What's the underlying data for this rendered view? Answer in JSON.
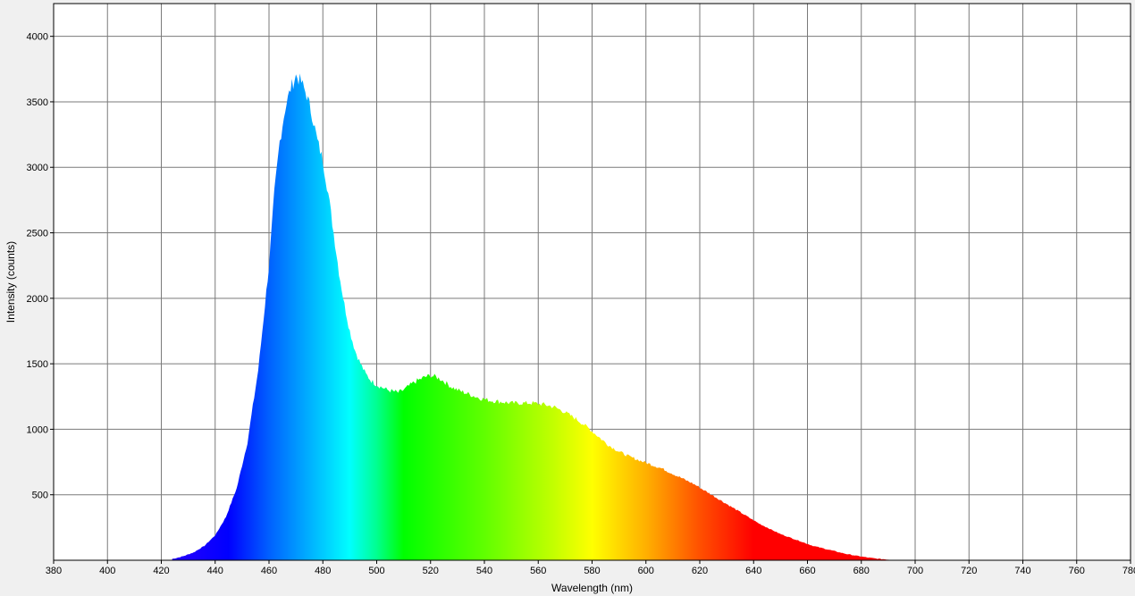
{
  "chart_data": {
    "type": "area",
    "title": "",
    "xlabel": "Wavelength (nm)",
    "ylabel": "Intensity (counts)",
    "xlim": [
      380,
      780
    ],
    "ylim": [
      0,
      4250
    ],
    "x_ticks": [
      380,
      400,
      420,
      440,
      460,
      480,
      500,
      520,
      540,
      560,
      580,
      600,
      620,
      640,
      660,
      680,
      700,
      720,
      740,
      760,
      780
    ],
    "y_ticks": [
      500,
      1000,
      1500,
      2000,
      2500,
      3000,
      3500,
      4000
    ],
    "grid": true,
    "fill": "visible-spectrum gradient",
    "series": [
      {
        "x": [
          424,
          428,
          432,
          436,
          440,
          444,
          448,
          452,
          456,
          460,
          462,
          464,
          466,
          468,
          470,
          472,
          474,
          476,
          478,
          480,
          482,
          484,
          486,
          488,
          490,
          492,
          494,
          496,
          498,
          500,
          502,
          504,
          506,
          508,
          510,
          512,
          514,
          516,
          518,
          520,
          522,
          524,
          526,
          528,
          530,
          534,
          538,
          542,
          546,
          550,
          554,
          558,
          562,
          566,
          570,
          574,
          578,
          582,
          586,
          590,
          594,
          598,
          602,
          606,
          610,
          614,
          618,
          622,
          626,
          630,
          634,
          638,
          642,
          646,
          650,
          654,
          658,
          662,
          666,
          670,
          674,
          678,
          682,
          686,
          690,
          694
        ],
        "y": [
          10,
          30,
          60,
          110,
          190,
          330,
          550,
          900,
          1450,
          2250,
          2800,
          3200,
          3450,
          3600,
          3700,
          3650,
          3550,
          3400,
          3200,
          3050,
          2800,
          2500,
          2200,
          1950,
          1750,
          1600,
          1500,
          1420,
          1370,
          1340,
          1320,
          1300,
          1290,
          1280,
          1300,
          1330,
          1360,
          1380,
          1400,
          1410,
          1400,
          1380,
          1350,
          1320,
          1300,
          1270,
          1240,
          1220,
          1210,
          1200,
          1200,
          1200,
          1190,
          1170,
          1130,
          1080,
          1020,
          950,
          880,
          830,
          790,
          760,
          730,
          700,
          660,
          620,
          580,
          530,
          480,
          430,
          380,
          330,
          280,
          240,
          200,
          170,
          140,
          110,
          90,
          70,
          50,
          35,
          22,
          12,
          5,
          0
        ]
      }
    ]
  }
}
